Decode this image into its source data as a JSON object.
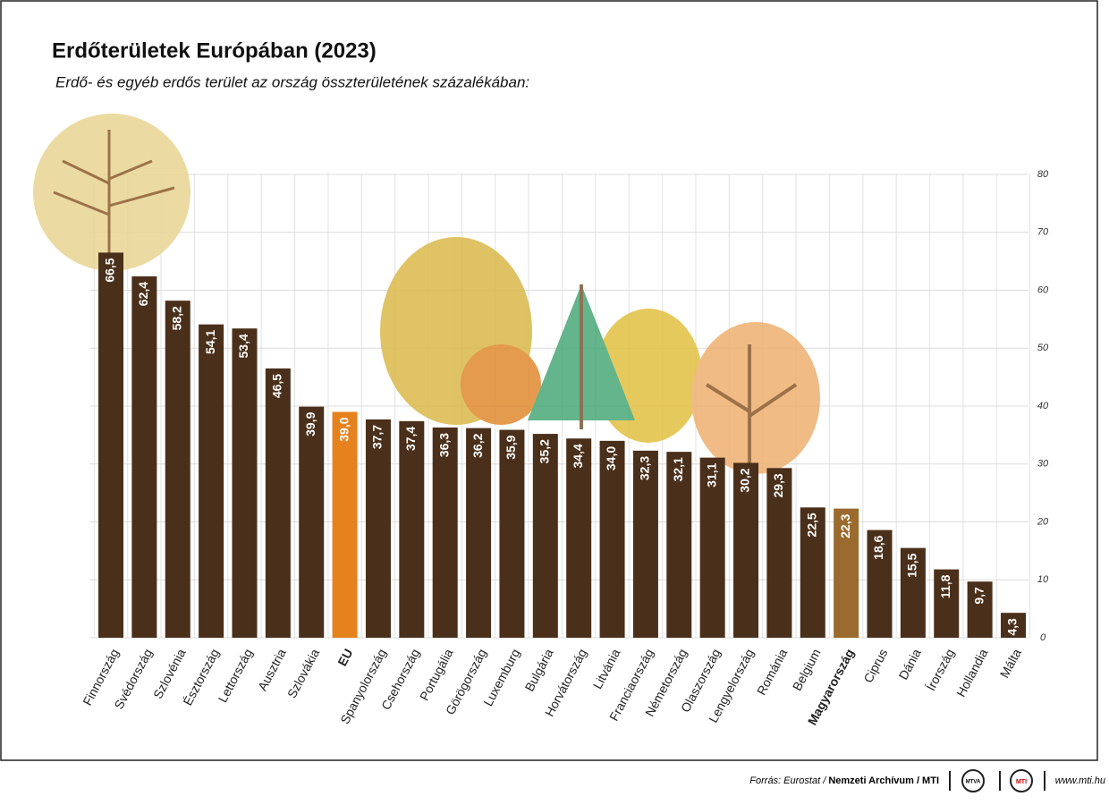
{
  "chart_data": {
    "type": "bar",
    "title": "Erdőterületek Európában (2023)",
    "subtitle": "Erdő- és egyéb erdős terület az ország összterületének százalékában:",
    "categories": [
      "Finnország",
      "Svédország",
      "Szlovénia",
      "Észtország",
      "Lettország",
      "Ausztria",
      "Szlovákia",
      "EU",
      "Spanyolország",
      "Csehország",
      "Portugália",
      "Görögország",
      "Luxemburg",
      "Bulgária",
      "Horvátország",
      "Litvánia",
      "Franciaország",
      "Németország",
      "Olaszország",
      "Lengyelország",
      "Románia",
      "Belgium",
      "Magyarország",
      "Ciprus",
      "Dánia",
      "Írország",
      "Hollandia",
      "Málta"
    ],
    "values": [
      66.5,
      62.4,
      58.2,
      54.1,
      53.4,
      46.5,
      39.9,
      39.0,
      37.7,
      37.4,
      36.3,
      36.2,
      35.9,
      35.2,
      34.4,
      34.0,
      32.3,
      32.1,
      31.1,
      30.2,
      29.3,
      22.5,
      22.3,
      18.6,
      15.5,
      11.8,
      9.7,
      4.3
    ],
    "value_labels": [
      "66,5",
      "62,4",
      "58,2",
      "54,1",
      "53,4",
      "46,5",
      "39,9",
      "39,0",
      "37,7",
      "37,4",
      "36,3",
      "36,2",
      "35,9",
      "35,2",
      "34,4",
      "34,0",
      "32,3",
      "32,1",
      "31,1",
      "30,2",
      "29,3",
      "22,5",
      "22,3",
      "18,6",
      "15,5",
      "11,8",
      "9,7",
      "4,3"
    ],
    "color": "#4a2f1a",
    "colors": [
      "#4a2f1a",
      "#4a2f1a",
      "#4a2f1a",
      "#4a2f1a",
      "#4a2f1a",
      "#4a2f1a",
      "#4a2f1a",
      "#e5821e",
      "#4a2f1a",
      "#4a2f1a",
      "#4a2f1a",
      "#4a2f1a",
      "#4a2f1a",
      "#4a2f1a",
      "#4a2f1a",
      "#4a2f1a",
      "#4a2f1a",
      "#4a2f1a",
      "#4a2f1a",
      "#4a2f1a",
      "#4a2f1a",
      "#4a2f1a",
      "#9a6a2e",
      "#4a2f1a",
      "#4a2f1a",
      "#4a2f1a",
      "#4a2f1a",
      "#4a2f1a"
    ],
    "ylim": [
      0,
      80
    ],
    "yticks": [
      0,
      10,
      20,
      30,
      40,
      50,
      60,
      70,
      80
    ],
    "grid": true
  },
  "footer": {
    "source_prefix": "Forrás: Eurostat /",
    "source_bold": "Nemzeti Archívum / MTI",
    "logo_1": "MTVA",
    "logo_2": "MTI",
    "url": "www.mti.hu"
  }
}
